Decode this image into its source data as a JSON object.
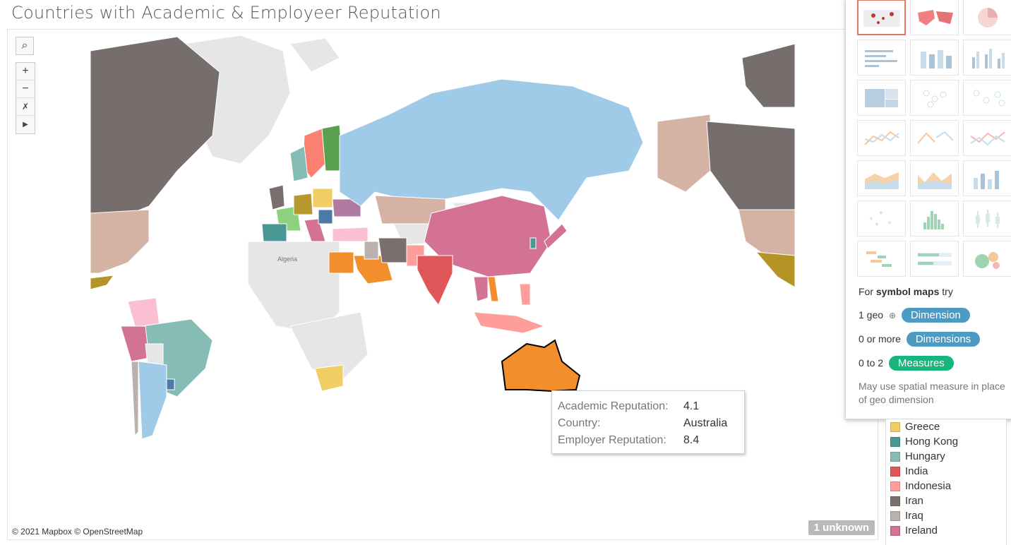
{
  "title": "Countries with Academic & Employeer Reputation",
  "map": {
    "attribution": "© 2021 Mapbox © OpenStreetMap",
    "unknown_badge": "1 unknown",
    "region_label": "Algeria",
    "tools": {
      "search_icon": "search-icon",
      "zoom_in": "+",
      "zoom_out": "−",
      "pin": "pin-icon",
      "play": "play-icon"
    }
  },
  "tooltip": {
    "rows": [
      {
        "label": "Academic Reputation:",
        "value": "4.1"
      },
      {
        "label": "Country:",
        "value": "Australia"
      },
      {
        "label": "Employer Reputation:",
        "value": "8.4"
      }
    ]
  },
  "showme": {
    "for_text": "For ",
    "for_bold": "symbol maps",
    "for_tail": " try",
    "geo_label": "1 geo",
    "geo_pill": "Dimension",
    "dims_label": "0 or more",
    "dims_pill": "Dimensions",
    "measures_label": "0 to 2",
    "measures_pill": "Measures",
    "note": "May use spatial measure in place of geo dimension",
    "colors": {
      "dimension": "#4d9ac3",
      "measure": "#18b57c",
      "selected": "#e07a5f"
    }
  },
  "legend": {
    "items": [
      {
        "name": "Greece",
        "color": "#f1ce63"
      },
      {
        "name": "Hong Kong",
        "color": "#499894"
      },
      {
        "name": "Hungary",
        "color": "#86bcb6"
      },
      {
        "name": "India",
        "color": "#e15759"
      },
      {
        "name": "Indonesia",
        "color": "#ff9d9a"
      },
      {
        "name": "Iran",
        "color": "#79706e"
      },
      {
        "name": "Iraq",
        "color": "#bab0ac"
      },
      {
        "name": "Ireland",
        "color": "#d37295"
      }
    ]
  }
}
